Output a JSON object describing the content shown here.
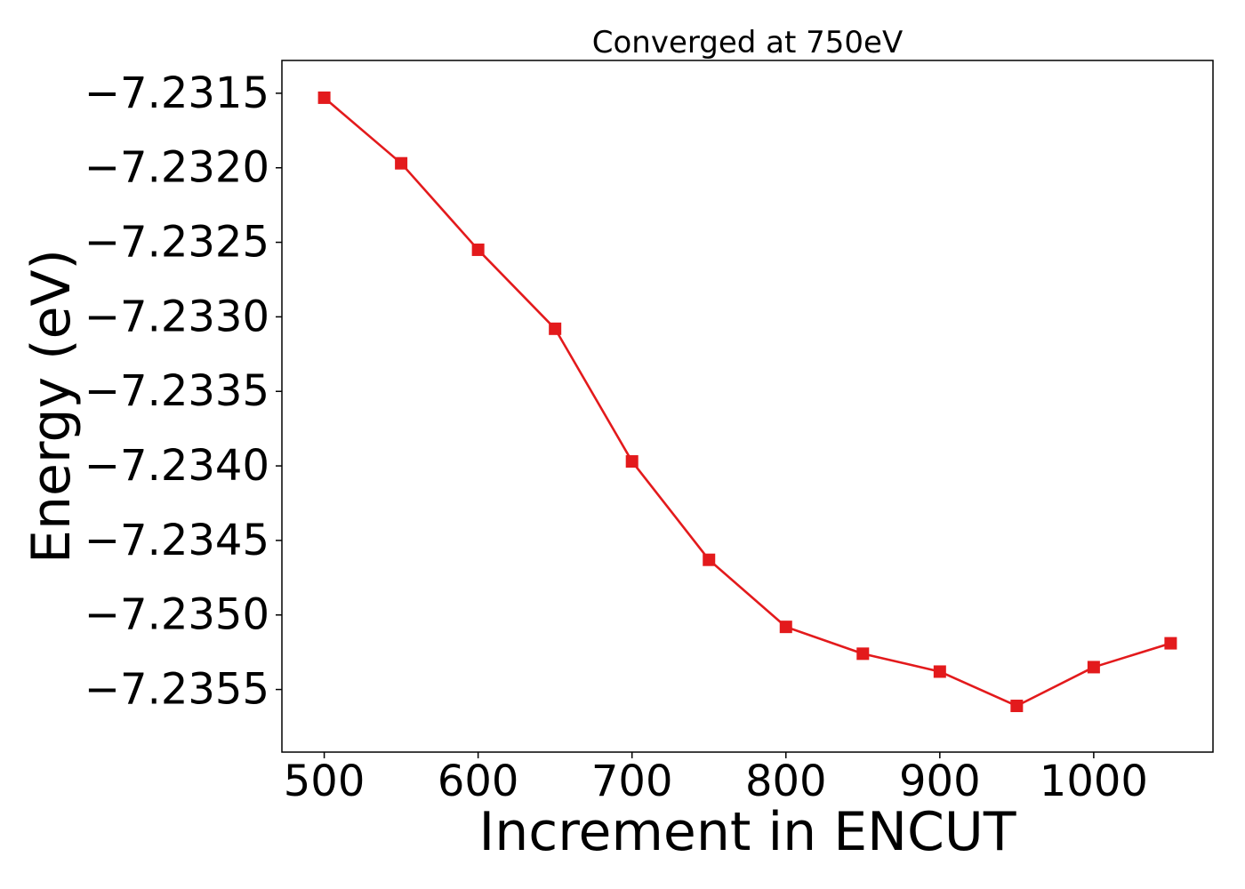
{
  "chart_data": {
    "type": "line",
    "title": "Converged at 750eV",
    "xlabel": "Increment in ENCUT",
    "ylabel": "Energy (eV)",
    "x": [
      500,
      550,
      600,
      650,
      700,
      750,
      800,
      850,
      900,
      950,
      1000,
      1050
    ],
    "series": [
      {
        "values": [
          -7.23153,
          -7.23197,
          -7.23255,
          -7.23308,
          -7.23397,
          -7.23463,
          -7.23508,
          -7.23526,
          -7.23538,
          -7.23561,
          -7.23535,
          -7.23519
        ],
        "color": "#e31a1c",
        "marker": "square"
      }
    ],
    "xticks": [
      500,
      600,
      700,
      800,
      900,
      1000
    ],
    "xtick_labels": [
      "500",
      "600",
      "700",
      "800",
      "900",
      "1000"
    ],
    "yticks": [
      -7.2315,
      -7.232,
      -7.2325,
      -7.233,
      -7.2335,
      -7.234,
      -7.2345,
      -7.235,
      -7.2355
    ],
    "ytick_labels": [
      "−7.2315",
      "−7.2320",
      "−7.2325",
      "−7.2330",
      "−7.2335",
      "−7.2340",
      "−7.2345",
      "−7.2350",
      "−7.2355"
    ],
    "xlim": [
      472.5,
      1077.5
    ],
    "ylim": [
      -7.23592,
      -7.23128
    ],
    "grid": false,
    "legend": "none"
  }
}
